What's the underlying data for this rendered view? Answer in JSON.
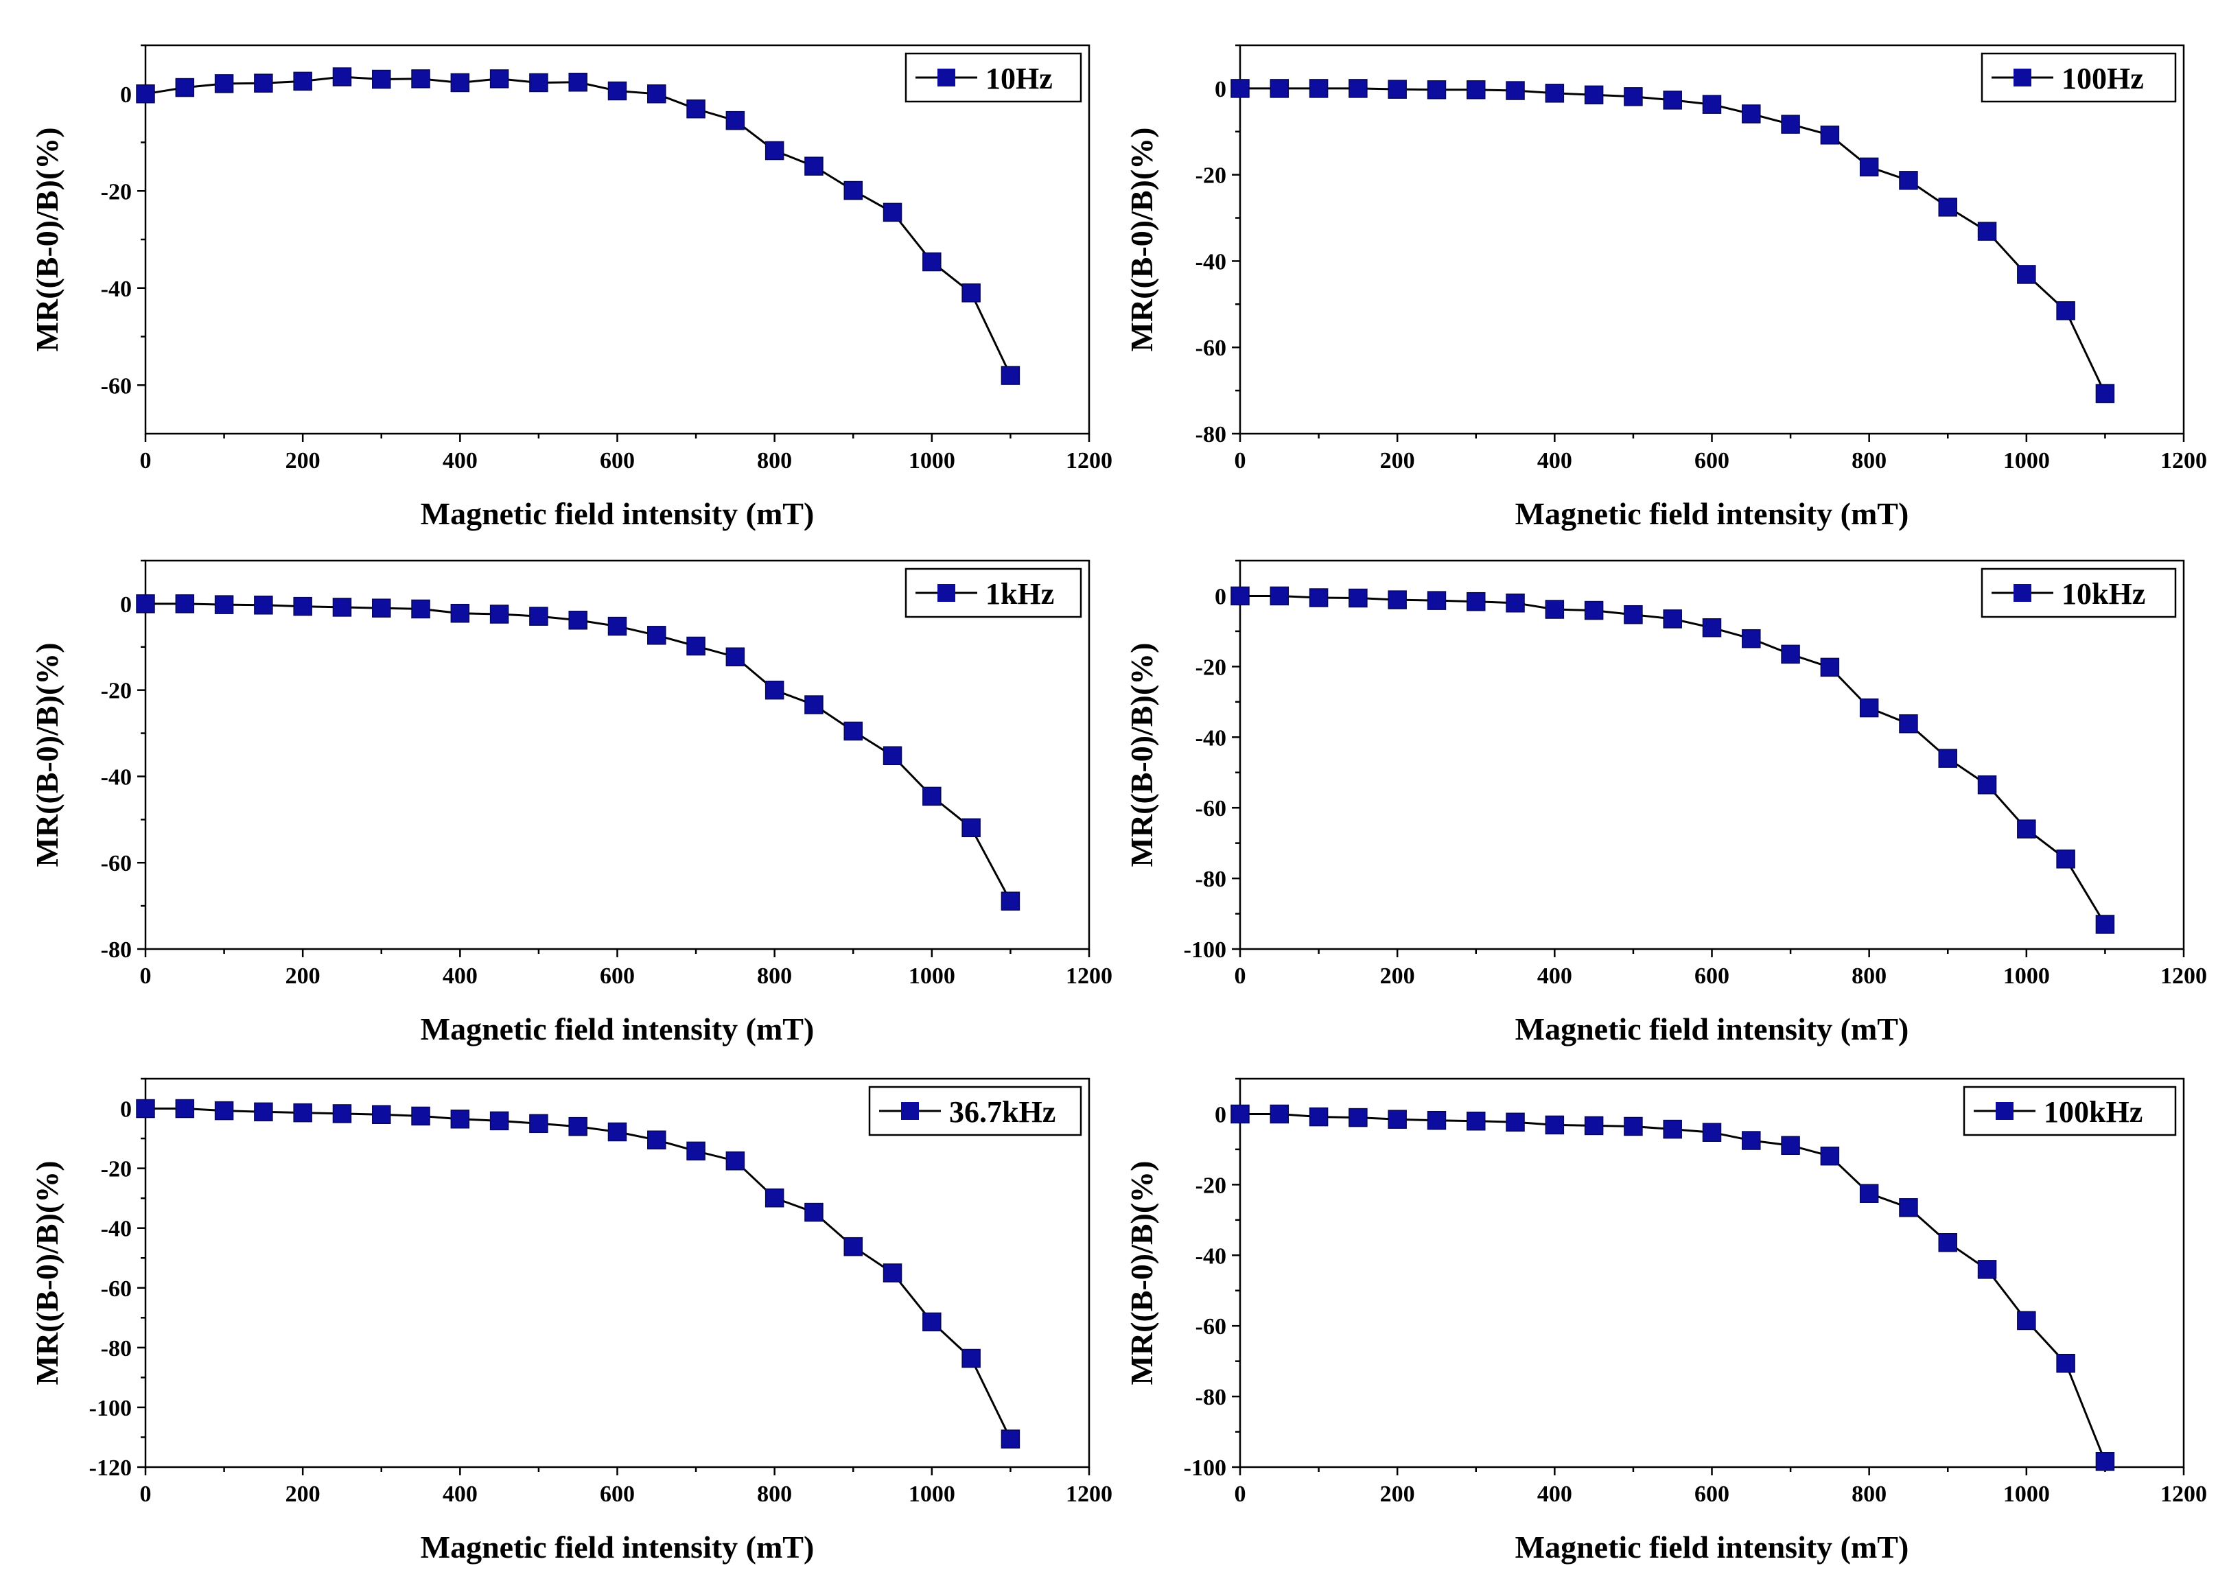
{
  "colors": {
    "marker": "#0C0C9E",
    "line": "#000000",
    "axis": "#000000"
  },
  "chart_data": [
    {
      "type": "line",
      "legend": "10Hz",
      "legend_position": "top-right",
      "xlabel": "Magnetic field intensity (mT)",
      "ylabel": "MR((B-0)/B)(%)",
      "xlim": [
        0,
        1200
      ],
      "ylim": [
        -70,
        10
      ],
      "xticks": [
        0,
        200,
        400,
        600,
        800,
        1000,
        1200
      ],
      "yticks": [
        -60,
        -40,
        -20,
        0
      ],
      "x": [
        0,
        50,
        100,
        150,
        200,
        250,
        300,
        350,
        400,
        450,
        500,
        550,
        600,
        650,
        700,
        750,
        800,
        850,
        900,
        950,
        1000,
        1050,
        1100
      ],
      "y": [
        0,
        1.3,
        2.1,
        2.2,
        2.6,
        3.5,
        3.0,
        3.1,
        2.3,
        3.1,
        2.3,
        2.4,
        0.6,
        0,
        -3.1,
        -5.5,
        -11.7,
        -14.9,
        -19.9,
        -24.4,
        -34.6,
        -41.0,
        -58.0
      ]
    },
    {
      "type": "line",
      "legend": "100Hz",
      "legend_position": "top-right",
      "xlabel": "Magnetic field intensity (mT)",
      "ylabel": "MR((B-0)/B)(%)",
      "xlim": [
        0,
        1200
      ],
      "ylim": [
        -80,
        10
      ],
      "xticks": [
        0,
        200,
        400,
        600,
        800,
        1000,
        1200
      ],
      "yticks": [
        -80,
        -60,
        -40,
        -20,
        0
      ],
      "x": [
        0,
        50,
        100,
        150,
        200,
        250,
        300,
        350,
        400,
        450,
        500,
        550,
        600,
        650,
        700,
        750,
        800,
        850,
        900,
        950,
        1000,
        1050,
        1100
      ],
      "y": [
        0,
        0,
        0,
        0,
        -0.2,
        -0.3,
        -0.3,
        -0.5,
        -1.1,
        -1.5,
        -1.9,
        -2.7,
        -3.7,
        -5.9,
        -8.3,
        -10.8,
        -18.2,
        -21.3,
        -27.5,
        -33.1,
        -43.1,
        -51.5,
        -70.7
      ]
    },
    {
      "type": "line",
      "legend": "1kHz",
      "legend_position": "top-right",
      "xlabel": "Magnetic field intensity (mT)",
      "ylabel": "MR((B-0)/B)(%)",
      "xlim": [
        0,
        1200
      ],
      "ylim": [
        -80,
        10
      ],
      "xticks": [
        0,
        200,
        400,
        600,
        800,
        1000,
        1200
      ],
      "yticks": [
        -80,
        -60,
        -40,
        -20,
        0
      ],
      "x": [
        0,
        50,
        100,
        150,
        200,
        250,
        300,
        350,
        400,
        450,
        500,
        550,
        600,
        650,
        700,
        750,
        800,
        850,
        900,
        950,
        1000,
        1050,
        1100
      ],
      "y": [
        0,
        0,
        -0.2,
        -0.3,
        -0.6,
        -0.8,
        -1.0,
        -1.2,
        -2.2,
        -2.4,
        -2.9,
        -3.8,
        -5.2,
        -7.3,
        -9.8,
        -12.3,
        -20.0,
        -23.4,
        -29.5,
        -35.2,
        -44.6,
        -51.9,
        -68.9
      ]
    },
    {
      "type": "line",
      "legend": "10kHz",
      "legend_position": "top-right",
      "xlabel": "Magnetic field intensity (mT)",
      "ylabel": "MR((B-0)/B)(%)",
      "xlim": [
        0,
        1200
      ],
      "ylim": [
        -100,
        10
      ],
      "xticks": [
        0,
        200,
        400,
        600,
        800,
        1000,
        1200
      ],
      "yticks": [
        -100,
        -80,
        -60,
        -40,
        -20,
        0
      ],
      "x": [
        0,
        50,
        100,
        150,
        200,
        250,
        300,
        350,
        400,
        450,
        500,
        550,
        600,
        650,
        700,
        750,
        800,
        850,
        900,
        950,
        1000,
        1050,
        1100
      ],
      "y": [
        0,
        0,
        -0.5,
        -0.6,
        -1.1,
        -1.3,
        -1.6,
        -2.0,
        -3.8,
        -4.1,
        -5.3,
        -6.5,
        -9.0,
        -12.1,
        -16.5,
        -20.2,
        -31.7,
        -36.2,
        -46.0,
        -53.5,
        -66.0,
        -74.5,
        -93.0
      ]
    },
    {
      "type": "line",
      "legend": "36.7kHz",
      "legend_position": "top-right",
      "xlabel": "Magnetic field intensity (mT)",
      "ylabel": "MR((B-0)/B)(%)",
      "xlim": [
        0,
        1200
      ],
      "ylim": [
        -120,
        10
      ],
      "xticks": [
        0,
        200,
        400,
        600,
        800,
        1000,
        1200
      ],
      "yticks": [
        -120,
        -100,
        -80,
        -60,
        -40,
        -20,
        0
      ],
      "x": [
        0,
        50,
        100,
        150,
        200,
        250,
        300,
        350,
        400,
        450,
        500,
        550,
        600,
        650,
        700,
        750,
        800,
        850,
        900,
        950,
        1000,
        1050,
        1100
      ],
      "y": [
        0,
        0,
        -0.7,
        -1.1,
        -1.4,
        -1.7,
        -2.0,
        -2.5,
        -3.5,
        -4.1,
        -5.0,
        -6.0,
        -7.8,
        -10.5,
        -14.2,
        -17.5,
        -29.9,
        -34.7,
        -46.2,
        -55.0,
        -71.4,
        -83.6,
        -110.6
      ]
    },
    {
      "type": "line",
      "legend": "100kHz",
      "legend_position": "top-right",
      "xlabel": "Magnetic field intensity (mT)",
      "ylabel": "MR((B-0)/B)(%)",
      "xlim": [
        0,
        1200
      ],
      "ylim": [
        -100,
        10
      ],
      "xticks": [
        0,
        200,
        400,
        600,
        800,
        1000,
        1200
      ],
      "yticks": [
        -100,
        -80,
        -60,
        -40,
        -20,
        0
      ],
      "x": [
        0,
        50,
        100,
        150,
        200,
        250,
        300,
        350,
        400,
        450,
        500,
        550,
        600,
        650,
        700,
        750,
        800,
        850,
        900,
        950,
        1000,
        1050,
        1100
      ],
      "y": [
        0,
        0,
        -0.8,
        -1.0,
        -1.5,
        -1.8,
        -2.0,
        -2.3,
        -3.1,
        -3.3,
        -3.5,
        -4.3,
        -5.2,
        -7.5,
        -8.9,
        -11.9,
        -22.5,
        -26.5,
        -36.4,
        -44.0,
        -58.5,
        -70.6,
        -98.4
      ]
    }
  ]
}
